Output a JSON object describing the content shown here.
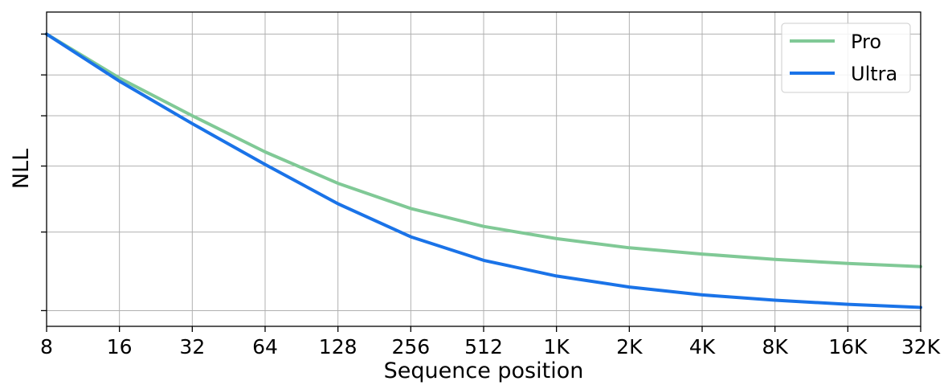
{
  "chart_data": {
    "type": "line",
    "xlabel": "Sequence position",
    "ylabel": "NLL",
    "x_scale": "log2",
    "x_ticks": [
      "8",
      "16",
      "32",
      "64",
      "128",
      "256",
      "512",
      "1K",
      "2K",
      "4K",
      "8K",
      "16K",
      "32K"
    ],
    "x_tick_values": [
      8,
      16,
      32,
      64,
      128,
      256,
      512,
      1024,
      2048,
      4096,
      8192,
      16384,
      32768
    ],
    "xlim": [
      8,
      32768
    ],
    "ylim": [
      0,
      1
    ],
    "y_tick_values": [
      0.05,
      0.3,
      0.51,
      0.67,
      0.8,
      0.93
    ],
    "y_tick_labels_shown": false,
    "grid": true,
    "legend_position": "top-right",
    "x": [
      8,
      16,
      32,
      64,
      128,
      256,
      512,
      1024,
      2048,
      4096,
      8192,
      16384,
      32768
    ],
    "series": [
      {
        "name": "Pro",
        "color": "#80c996",
        "values": [
          0.93,
          0.79,
          0.67,
          0.555,
          0.455,
          0.375,
          0.318,
          0.279,
          0.25,
          0.23,
          0.213,
          0.2,
          0.19
        ]
      },
      {
        "name": "Ultra",
        "color": "#1a73e8",
        "values": [
          0.93,
          0.78,
          0.645,
          0.515,
          0.39,
          0.285,
          0.21,
          0.16,
          0.125,
          0.1,
          0.083,
          0.07,
          0.06
        ]
      }
    ]
  }
}
